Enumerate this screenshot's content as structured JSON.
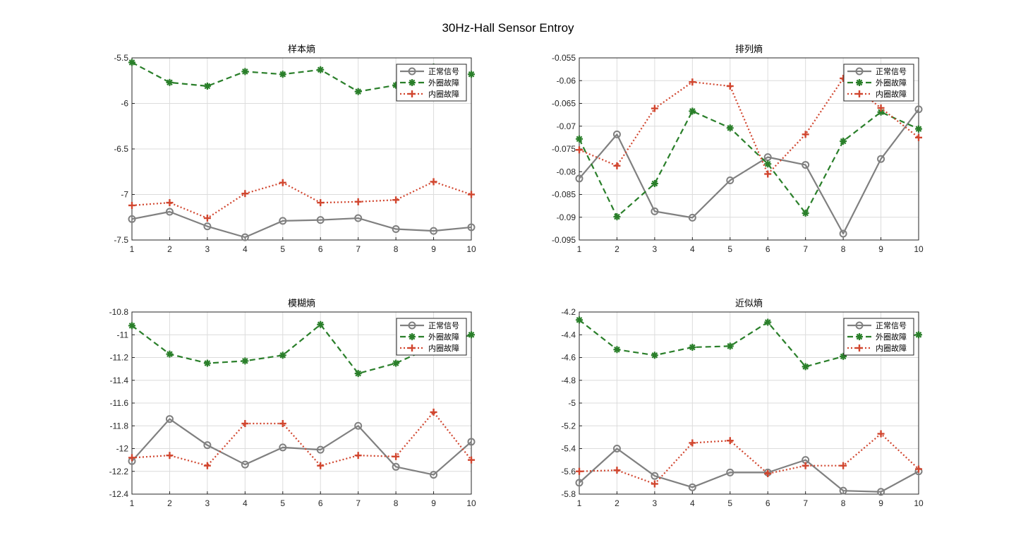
{
  "figure_title": "30Hz-Hall Sensor Entroy",
  "colors": {
    "normal": "#808080",
    "outer": "#2a7f2a",
    "inner": "#d1462f"
  },
  "chart_data": [
    {
      "type": "line",
      "title": "样本熵",
      "x": [
        1,
        2,
        3,
        4,
        5,
        6,
        7,
        8,
        9,
        10
      ],
      "ylim": [
        -7.5,
        -5.5
      ],
      "yticks": [
        -5.5,
        -6,
        -6.5,
        -7,
        -7.5
      ],
      "ytick_labels": [
        "-5.5",
        "-6",
        "-6.5",
        "-7",
        "-7.5"
      ],
      "grid": true,
      "legend": "top-right",
      "series": [
        {
          "name": "正常信号",
          "style": "solid-circle",
          "values": [
            -7.27,
            -7.19,
            -7.35,
            -7.47,
            -7.29,
            -7.28,
            -7.26,
            -7.38,
            -7.4,
            -7.36
          ]
        },
        {
          "name": "外圈故障",
          "style": "dashed-star",
          "values": [
            -5.55,
            -5.77,
            -5.81,
            -5.65,
            -5.68,
            -5.63,
            -5.87,
            -5.8,
            -5.6,
            -5.68
          ]
        },
        {
          "name": "内圈故障",
          "style": "dotted-plus",
          "values": [
            -7.12,
            -7.09,
            -7.26,
            -6.99,
            -6.87,
            -7.09,
            -7.08,
            -7.06,
            -6.86,
            -7.0
          ]
        }
      ]
    },
    {
      "type": "line",
      "title": "排列熵",
      "x": [
        1,
        2,
        3,
        4,
        5,
        6,
        7,
        8,
        9,
        10
      ],
      "ylim": [
        -0.095,
        -0.055
      ],
      "yticks": [
        -0.055,
        -0.06,
        -0.065,
        -0.07,
        -0.075,
        -0.08,
        -0.085,
        -0.09,
        -0.095
      ],
      "ytick_labels": [
        "-0.055",
        "-0.06",
        "-0.065",
        "-0.07",
        "-0.075",
        "-0.08",
        "-0.085",
        "-0.09",
        "-0.095"
      ],
      "grid": true,
      "legend": "top-right",
      "series": [
        {
          "name": "正常信号",
          "style": "solid-circle",
          "values": [
            -0.0815,
            -0.0718,
            -0.0887,
            -0.0901,
            -0.0819,
            -0.0768,
            -0.0785,
            -0.0936,
            -0.0772,
            -0.0663
          ]
        },
        {
          "name": "外圈故障",
          "style": "dashed-star",
          "values": [
            -0.0728,
            -0.0899,
            -0.0826,
            -0.0667,
            -0.0704,
            -0.0783,
            -0.0891,
            -0.0733,
            -0.0669,
            -0.0706
          ]
        },
        {
          "name": "内圈故障",
          "style": "dotted-plus",
          "values": [
            -0.0752,
            -0.0787,
            -0.0661,
            -0.0603,
            -0.0612,
            -0.0805,
            -0.0718,
            -0.0595,
            -0.066,
            -0.0725
          ]
        }
      ]
    },
    {
      "type": "line",
      "title": "模糊熵",
      "x": [
        1,
        2,
        3,
        4,
        5,
        6,
        7,
        8,
        9,
        10
      ],
      "ylim": [
        -12.4,
        -10.8
      ],
      "yticks": [
        -10.8,
        -11,
        -11.2,
        -11.4,
        -11.6,
        -11.8,
        -12,
        -12.2,
        -12.4
      ],
      "ytick_labels": [
        "-10.8",
        "-11",
        "-11.2",
        "-11.4",
        "-11.6",
        "-11.8",
        "-12",
        "-12.2",
        "-12.4"
      ],
      "grid": true,
      "legend": "top-right",
      "series": [
        {
          "name": "正常信号",
          "style": "solid-circle",
          "values": [
            -12.11,
            -11.74,
            -11.97,
            -12.14,
            -11.99,
            -12.01,
            -11.8,
            -12.16,
            -12.23,
            -11.94
          ]
        },
        {
          "name": "外圈故障",
          "style": "dashed-star",
          "values": [
            -10.92,
            -11.17,
            -11.25,
            -11.23,
            -11.18,
            -10.91,
            -11.34,
            -11.25,
            -11.1,
            -11.0
          ]
        },
        {
          "name": "内圈故障",
          "style": "dotted-plus",
          "values": [
            -12.08,
            -12.06,
            -12.15,
            -11.78,
            -11.78,
            -12.15,
            -12.06,
            -12.07,
            -11.68,
            -12.1
          ]
        }
      ]
    },
    {
      "type": "line",
      "title": "近似熵",
      "x": [
        1,
        2,
        3,
        4,
        5,
        6,
        7,
        8,
        9,
        10
      ],
      "ylim": [
        -5.8,
        -4.2
      ],
      "yticks": [
        -4.2,
        -4.4,
        -4.6,
        -4.8,
        -5,
        -5.2,
        -5.4,
        -5.6,
        -5.8
      ],
      "ytick_labels": [
        "-4.2",
        "-4.4",
        "-4.6",
        "-4.8",
        "-5",
        "-5.2",
        "-5.4",
        "-5.6",
        "-5.8"
      ],
      "grid": true,
      "legend": "top-right",
      "series": [
        {
          "name": "正常信号",
          "style": "solid-circle",
          "values": [
            -5.7,
            -5.4,
            -5.64,
            -5.74,
            -5.61,
            -5.61,
            -5.5,
            -5.77,
            -5.78,
            -5.6
          ]
        },
        {
          "name": "外圈故障",
          "style": "dashed-star",
          "values": [
            -4.27,
            -4.53,
            -4.58,
            -4.51,
            -4.5,
            -4.29,
            -4.68,
            -4.59,
            -4.43,
            -4.4
          ]
        },
        {
          "name": "内圈故障",
          "style": "dotted-plus",
          "values": [
            -5.6,
            -5.59,
            -5.71,
            -5.35,
            -5.33,
            -5.62,
            -5.55,
            -5.55,
            -5.27,
            -5.58
          ]
        }
      ]
    }
  ]
}
